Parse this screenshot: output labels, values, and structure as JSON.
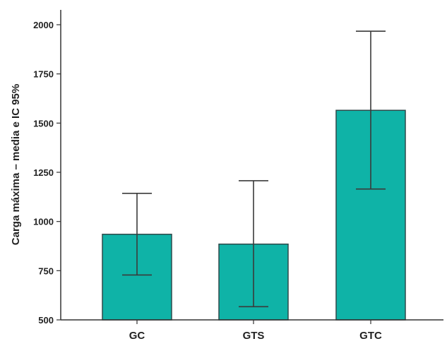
{
  "chart_data": {
    "type": "bar",
    "title": "",
    "xlabel": "",
    "ylabel": "Carga máxima – media e IC 95%",
    "categories": [
      "GC",
      "GTS",
      "GTC"
    ],
    "values": [
      935,
      885,
      1565
    ],
    "error_low": [
      728,
      567,
      1165
    ],
    "error_high": [
      1143,
      1207,
      1967
    ],
    "ylim": [
      500,
      2050
    ],
    "yticks": [
      500,
      750,
      1000,
      1250,
      1500,
      1750,
      2000
    ],
    "grid": false,
    "bar_color": "#0fb3a7",
    "bar_edge_color": "#2e4a4a",
    "error_color": "#3a3a3a"
  }
}
